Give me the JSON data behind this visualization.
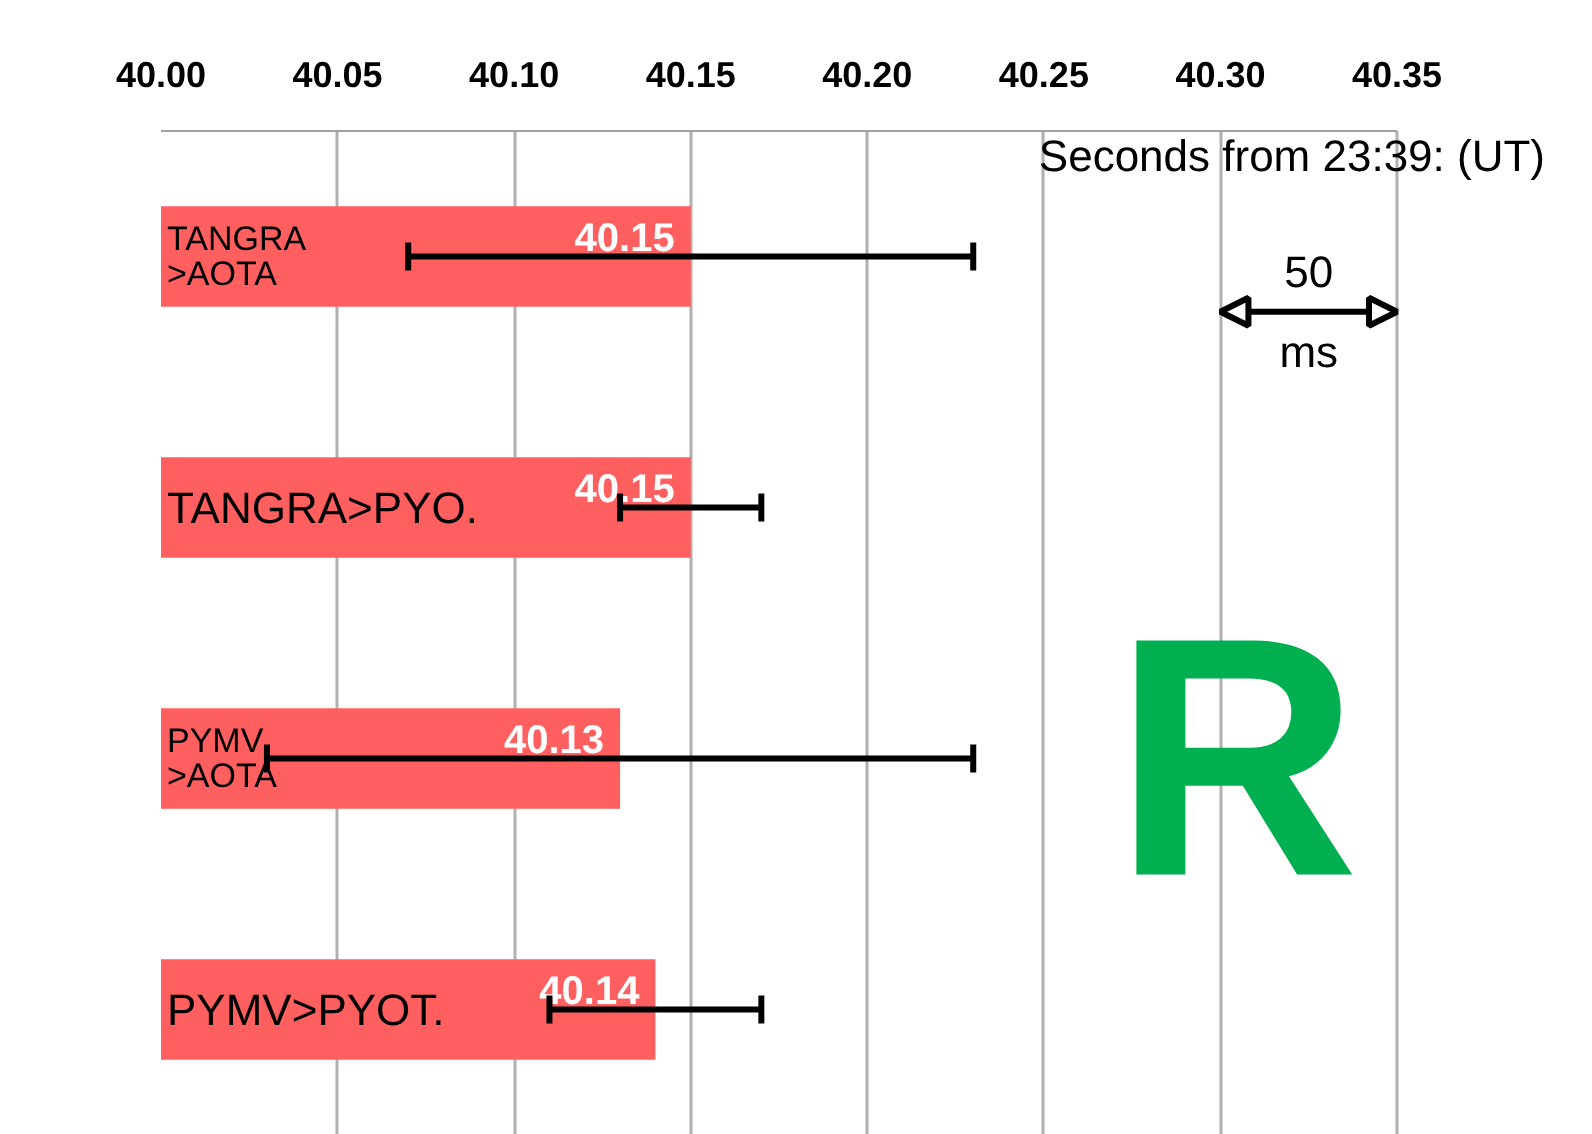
{
  "chart_data": {
    "type": "bar",
    "orientation": "horizontal",
    "categories": [
      "TANGRA\n>AOTA",
      "TANGRA>PYO.",
      "PYMV\n>AOTA",
      "PYMV>PYOT."
    ],
    "values": [
      40.15,
      40.15,
      40.13,
      40.14
    ],
    "errors": [
      [
        40.07,
        40.23
      ],
      [
        40.13,
        40.17
      ],
      [
        40.03,
        40.23
      ],
      [
        40.11,
        40.17
      ]
    ],
    "color": "#ff5f5f",
    "data_labels": true,
    "xlim": [
      40.0,
      40.35
    ],
    "xticks": [
      {
        "value": 40.0,
        "label": "40.00"
      },
      {
        "value": 40.05,
        "label": "40.05"
      },
      {
        "value": 40.1,
        "label": "40.10"
      },
      {
        "value": 40.15,
        "label": "40.15"
      },
      {
        "value": 40.2,
        "label": "40.20"
      },
      {
        "value": 40.25,
        "label": "40.25"
      },
      {
        "value": 40.3,
        "label": "40.30"
      },
      {
        "value": 40.35,
        "label": "40.35"
      }
    ],
    "grid": "x",
    "annotations": [
      "Seconds from 23:39: (UT)",
      "50\nms",
      "R"
    ]
  }
}
